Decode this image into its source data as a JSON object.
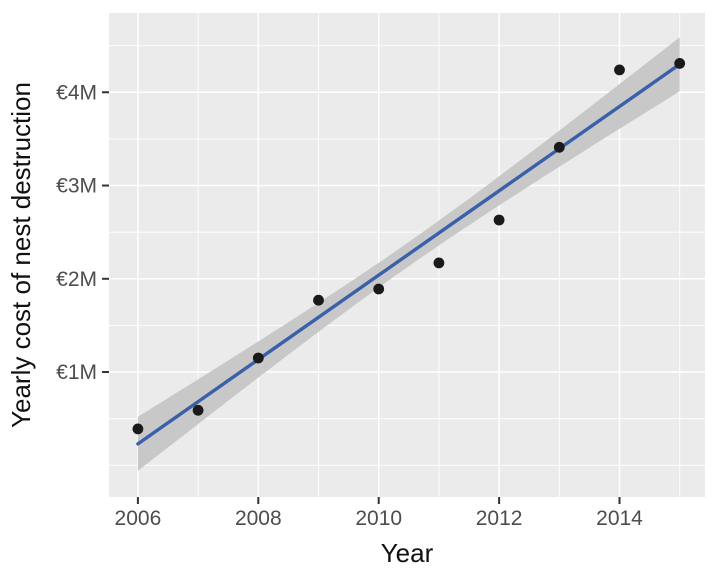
{
  "chart_data": {
    "type": "scatter",
    "title": "",
    "xlabel": "Year",
    "ylabel": "Yearly cost of nest destruction",
    "x": [
      2006,
      2007,
      2008,
      2009,
      2010,
      2011,
      2012,
      2013,
      2014,
      2015
    ],
    "series": [
      {
        "name": "yearly_cost_million_eur",
        "values": [
          0.39,
          0.59,
          1.15,
          1.77,
          1.89,
          2.17,
          2.63,
          3.41,
          4.24,
          4.31
        ]
      }
    ],
    "trendline": {
      "type": "linear_regression",
      "x_start": 2006,
      "x_end": 2015,
      "y_start_million": 0.23,
      "y_end_million": 4.3,
      "confidence_band": {
        "half_width_mid_million": 0.13,
        "half_width_end_million": 0.29
      }
    },
    "x_ticks": [
      {
        "value": 2006,
        "label": "2006"
      },
      {
        "value": 2008,
        "label": "2008"
      },
      {
        "value": 2010,
        "label": "2010"
      },
      {
        "value": 2012,
        "label": "2012"
      },
      {
        "value": 2014,
        "label": "2014"
      }
    ],
    "y_ticks": [
      {
        "value": 1,
        "label": "€1M"
      },
      {
        "value": 2,
        "label": "€2M"
      },
      {
        "value": 3,
        "label": "€3M"
      },
      {
        "value": 4,
        "label": "€4M"
      }
    ],
    "x_minor_breaks": [
      2007,
      2009,
      2011,
      2013,
      2015
    ],
    "y_minor_breaks": [
      0,
      0.5,
      1.5,
      2.5,
      3.5,
      4.5
    ],
    "xlim": [
      2005.52,
      2015.42
    ],
    "ylim_million": [
      -0.34,
      4.85
    ],
    "grid": "major+minor",
    "legend_position": "none"
  },
  "style": {
    "page_bg": "#ffffff",
    "panel_bg": "#ebebeb",
    "grid_color": "#ffffff",
    "band_color": "#c8c8c8",
    "line_color": "#3a60a9",
    "point_color": "#1a1a1a",
    "tick_mark_color": "#333333",
    "tick_label_color": "#4d4d4d",
    "axis_title_color": "#111111"
  }
}
